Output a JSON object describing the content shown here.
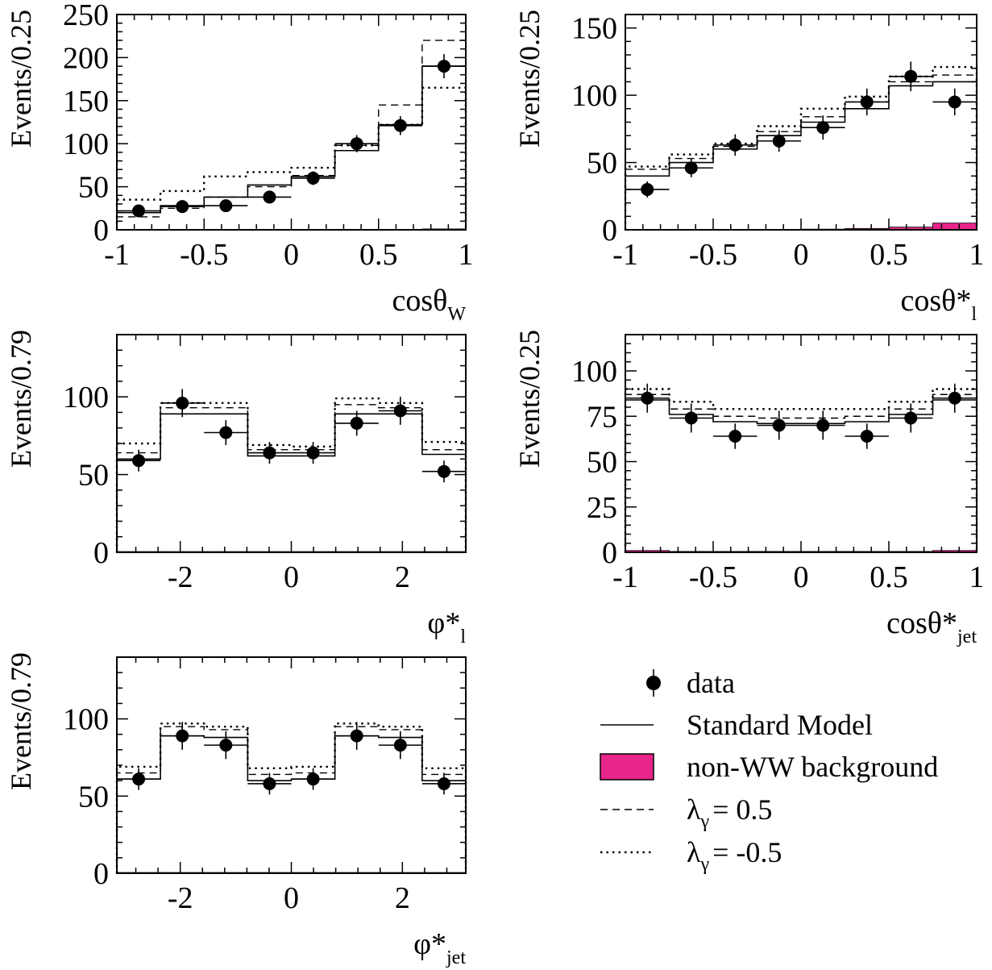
{
  "colors": {
    "background_fill": "#e8268a",
    "ink": "#000000"
  },
  "chart_data": [
    {
      "id": "cos-theta-w",
      "type": "histogram",
      "ylabel": "Events/0.25",
      "xlabel_main": "cosθ",
      "xlabel_sub": "W",
      "xlim": [
        -1,
        1
      ],
      "ylim": [
        0,
        250
      ],
      "xticks": [
        "-1",
        "-0.5",
        "0",
        "0.5",
        "1"
      ],
      "xtick_values": [
        -1,
        -0.5,
        0,
        0.5,
        1
      ],
      "yticks": [
        "0",
        "50",
        "100",
        "150",
        "200",
        "250"
      ],
      "ytick_values": [
        0,
        50,
        100,
        150,
        200,
        250
      ],
      "bin_edges": [
        -1,
        -0.75,
        -0.5,
        -0.25,
        0,
        0.25,
        0.5,
        0.75,
        1
      ],
      "data_values": [
        22,
        27,
        28,
        38,
        60,
        100,
        121,
        190
      ],
      "data_errors": [
        6,
        6,
        6,
        7,
        8,
        10,
        11,
        14
      ],
      "sm_values": [
        20,
        28,
        38,
        52,
        62,
        92,
        122,
        190
      ],
      "dashed_values": [
        15,
        25,
        38,
        50,
        63,
        98,
        145,
        220
      ],
      "dotted_values": [
        35,
        45,
        62,
        67,
        72,
        98,
        122,
        165
      ],
      "background_values": [
        0,
        0,
        0,
        0,
        0,
        0,
        0,
        1
      ]
    },
    {
      "id": "cos-theta-star-l",
      "type": "histogram",
      "ylabel": "Events/0.25",
      "xlabel_main": "cosθ*",
      "xlabel_sub": "l",
      "xlim": [
        -1,
        1
      ],
      "ylim": [
        0,
        160
      ],
      "xticks": [
        "-1",
        "-0.5",
        "0",
        "0.5",
        "1"
      ],
      "xtick_values": [
        -1,
        -0.5,
        0,
        0.5,
        1
      ],
      "yticks": [
        "0",
        "50",
        "100",
        "150"
      ],
      "ytick_values": [
        0,
        50,
        100,
        150
      ],
      "bin_edges": [
        -1,
        -0.75,
        -0.5,
        -0.25,
        0,
        0.25,
        0.5,
        0.75,
        1
      ],
      "data_values": [
        30,
        46,
        63,
        66,
        76,
        95,
        114,
        95
      ],
      "data_errors": [
        6,
        7,
        8,
        8,
        9,
        10,
        11,
        10
      ],
      "sm_values": [
        40,
        50,
        60,
        70,
        80,
        90,
        107,
        110
      ],
      "dashed_values": [
        45,
        53,
        62,
        73,
        84,
        95,
        110,
        115
      ],
      "dotted_values": [
        47,
        56,
        64,
        77,
        90,
        99,
        114,
        121
      ],
      "background_values": [
        0,
        0,
        0,
        0,
        0.5,
        1,
        2,
        5
      ]
    },
    {
      "id": "phi-star-l",
      "type": "histogram",
      "ylabel": "Events/0.79",
      "xlabel_main": "φ*",
      "xlabel_sub": "l",
      "xlim": [
        -3.1416,
        3.1416
      ],
      "ylim": [
        0,
        140
      ],
      "xticks": [
        "-2",
        "0",
        "2"
      ],
      "xtick_values": [
        -2,
        0,
        2
      ],
      "yticks": [
        "0",
        "50",
        "100"
      ],
      "ytick_values": [
        0,
        50,
        100
      ],
      "bin_edges": [
        -3.1416,
        -2.3562,
        -1.5708,
        -0.7854,
        0,
        0.7854,
        1.5708,
        2.3562,
        3.1416
      ],
      "data_values": [
        59,
        96,
        77,
        64,
        64,
        83,
        91,
        52
      ],
      "data_errors": [
        7,
        9,
        8,
        7,
        7,
        8,
        9,
        7
      ],
      "sm_values": [
        60,
        89,
        89,
        62,
        62,
        89,
        89,
        63
      ],
      "dashed_values": [
        64,
        93,
        93,
        66,
        66,
        95,
        93,
        66
      ],
      "dotted_values": [
        70,
        96,
        96,
        69,
        68,
        99,
        96,
        71
      ],
      "background_values": [
        0.5,
        0.5,
        0.5,
        0.5,
        0.5,
        0.5,
        0.5,
        0.5
      ]
    },
    {
      "id": "cos-theta-star-jet",
      "type": "histogram",
      "ylabel": "Events/0.25",
      "xlabel_main": "cosθ*",
      "xlabel_sub": "jet",
      "xlim": [
        -1,
        1
      ],
      "ylim": [
        0,
        120
      ],
      "xticks": [
        "-1",
        "-0.5",
        "0",
        "0.5",
        "1"
      ],
      "xtick_values": [
        -1,
        -0.5,
        0,
        0.5,
        1
      ],
      "yticks": [
        "0",
        "25",
        "50",
        "75",
        "100"
      ],
      "ytick_values": [
        0,
        25,
        50,
        75,
        100
      ],
      "bin_edges": [
        -1,
        -0.75,
        -0.5,
        -0.25,
        0,
        0.25,
        0.5,
        0.75,
        1
      ],
      "data_values": [
        85,
        74,
        64,
        70,
        70,
        64,
        74,
        85
      ],
      "data_errors": [
        8,
        8,
        7,
        8,
        8,
        7,
        8,
        8
      ],
      "sm_values": [
        84,
        76,
        72,
        71,
        71,
        72,
        76,
        84
      ],
      "dashed_values": [
        87,
        79,
        75,
        74,
        74,
        75,
        79,
        87
      ],
      "dotted_values": [
        90,
        83,
        79,
        79,
        79,
        79,
        83,
        90
      ],
      "background_values": [
        1,
        0.5,
        0.5,
        0.5,
        0.5,
        0.5,
        0.5,
        1
      ]
    },
    {
      "id": "phi-star-jet",
      "type": "histogram",
      "ylabel": "Events/0.79",
      "xlabel_main": "φ*",
      "xlabel_sub": "jet",
      "xlim": [
        -3.1416,
        3.1416
      ],
      "ylim": [
        0,
        140
      ],
      "xticks": [
        "-2",
        "0",
        "2"
      ],
      "xtick_values": [
        -2,
        0,
        2
      ],
      "yticks": [
        "0",
        "50",
        "100"
      ],
      "ytick_values": [
        0,
        50,
        100
      ],
      "bin_edges": [
        -3.1416,
        -2.3562,
        -1.5708,
        -0.7854,
        0,
        0.7854,
        1.5708,
        2.3562,
        3.1416
      ],
      "data_values": [
        61,
        89,
        83,
        58,
        61,
        89,
        83,
        58
      ],
      "data_errors": [
        7,
        9,
        9,
        7,
        7,
        9,
        9,
        7
      ],
      "sm_values": [
        61,
        89,
        88,
        60,
        61,
        89,
        88,
        60
      ],
      "dashed_values": [
        65,
        95,
        93,
        64,
        65,
        95,
        93,
        64
      ],
      "dotted_values": [
        69,
        97,
        95,
        68,
        69,
        97,
        95,
        68
      ],
      "background_values": [
        0.5,
        0.5,
        0.5,
        0.5,
        0.5,
        0.5,
        0.5,
        0.5
      ]
    }
  ],
  "legend": {
    "data": "data",
    "sm": "Standard Model",
    "background": "non-WW background",
    "dashed_prefix": "λ",
    "dashed_sub": "γ",
    "dashed_value": "=  0.5",
    "dotted_prefix": "λ",
    "dotted_sub": "γ",
    "dotted_value": "= -0.5"
  }
}
